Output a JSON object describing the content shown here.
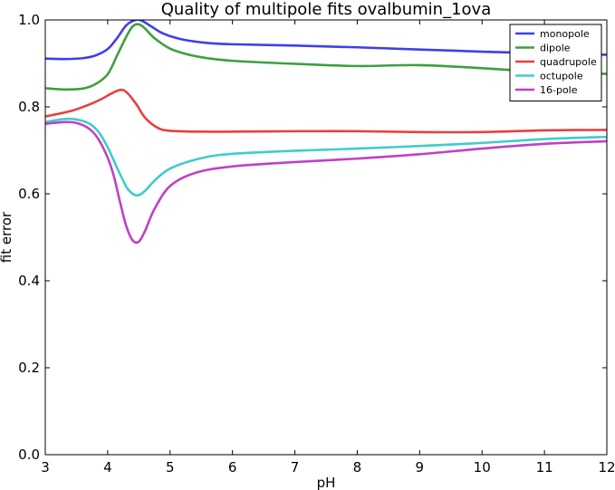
{
  "chart_data": {
    "type": "line",
    "title": "Quality of multipole fits ovalbumin_1ova",
    "xlabel": "pH",
    "ylabel": "fit error",
    "xlim": [
      3,
      12
    ],
    "ylim": [
      0.0,
      1.0
    ],
    "xticks": [
      3,
      4,
      5,
      6,
      7,
      8,
      9,
      10,
      11,
      12
    ],
    "xtick_labels": [
      "3",
      "4",
      "5",
      "6",
      "7",
      "8",
      "9",
      "10",
      "11",
      "12"
    ],
    "yticks": [
      0.0,
      0.2,
      0.4,
      0.6,
      0.8,
      1.0
    ],
    "ytick_labels": [
      "0.0",
      "0.2",
      "0.4",
      "0.6",
      "0.8",
      "1.0"
    ],
    "grid": false,
    "legend_position": "top-right",
    "series": [
      {
        "name": "monopole",
        "color": "#3f3fe8",
        "x": [
          3.0,
          3.3,
          3.6,
          3.8,
          4.0,
          4.15,
          4.3,
          4.45,
          4.55,
          4.7,
          4.9,
          5.2,
          5.6,
          6.0,
          7.0,
          8.0,
          9.0,
          10.0,
          11.0,
          12.0
        ],
        "y": [
          0.911,
          0.91,
          0.912,
          0.918,
          0.933,
          0.958,
          0.988,
          1.0,
          0.998,
          0.985,
          0.968,
          0.955,
          0.947,
          0.944,
          0.941,
          0.937,
          0.932,
          0.927,
          0.923,
          0.92
        ]
      },
      {
        "name": "dipole",
        "color": "#3f9f3f",
        "x": [
          3.0,
          3.3,
          3.6,
          3.8,
          4.0,
          4.15,
          4.3,
          4.4,
          4.5,
          4.6,
          4.75,
          5.0,
          5.3,
          5.6,
          6.0,
          7.0,
          8.0,
          9.0,
          10.0,
          11.0,
          12.0
        ],
        "y": [
          0.843,
          0.84,
          0.842,
          0.852,
          0.875,
          0.918,
          0.962,
          0.985,
          0.99,
          0.98,
          0.958,
          0.934,
          0.92,
          0.912,
          0.906,
          0.899,
          0.894,
          0.896,
          0.889,
          0.88,
          0.876
        ]
      },
      {
        "name": "quadrupole",
        "color": "#e84040",
        "x": [
          3.0,
          3.4,
          3.7,
          3.9,
          4.05,
          4.2,
          4.3,
          4.45,
          4.6,
          4.8,
          5.0,
          5.5,
          6.0,
          7.0,
          8.0,
          9.0,
          10.0,
          11.0,
          12.0
        ],
        "y": [
          0.778,
          0.79,
          0.805,
          0.818,
          0.83,
          0.839,
          0.834,
          0.808,
          0.775,
          0.752,
          0.745,
          0.743,
          0.743,
          0.744,
          0.744,
          0.742,
          0.742,
          0.746,
          0.747
        ]
      },
      {
        "name": "octupole",
        "color": "#40cccc",
        "x": [
          3.0,
          3.3,
          3.5,
          3.7,
          3.85,
          4.0,
          4.15,
          4.3,
          4.4,
          4.5,
          4.6,
          4.75,
          5.0,
          5.5,
          6.0,
          7.0,
          8.0,
          9.0,
          10.0,
          11.0,
          12.0
        ],
        "y": [
          0.765,
          0.772,
          0.771,
          0.762,
          0.743,
          0.707,
          0.66,
          0.616,
          0.6,
          0.597,
          0.607,
          0.63,
          0.658,
          0.682,
          0.692,
          0.699,
          0.704,
          0.71,
          0.717,
          0.726,
          0.731
        ]
      },
      {
        "name": "16-pole",
        "color": "#c040c8",
        "x": [
          3.0,
          3.3,
          3.5,
          3.7,
          3.85,
          4.0,
          4.1,
          4.2,
          4.3,
          4.4,
          4.5,
          4.6,
          4.75,
          5.0,
          5.4,
          6.0,
          7.0,
          8.0,
          9.0,
          10.0,
          11.0,
          12.0
        ],
        "y": [
          0.761,
          0.765,
          0.763,
          0.75,
          0.726,
          0.683,
          0.64,
          0.58,
          0.525,
          0.493,
          0.49,
          0.515,
          0.565,
          0.618,
          0.648,
          0.663,
          0.673,
          0.681,
          0.691,
          0.704,
          0.715,
          0.721
        ]
      }
    ]
  }
}
